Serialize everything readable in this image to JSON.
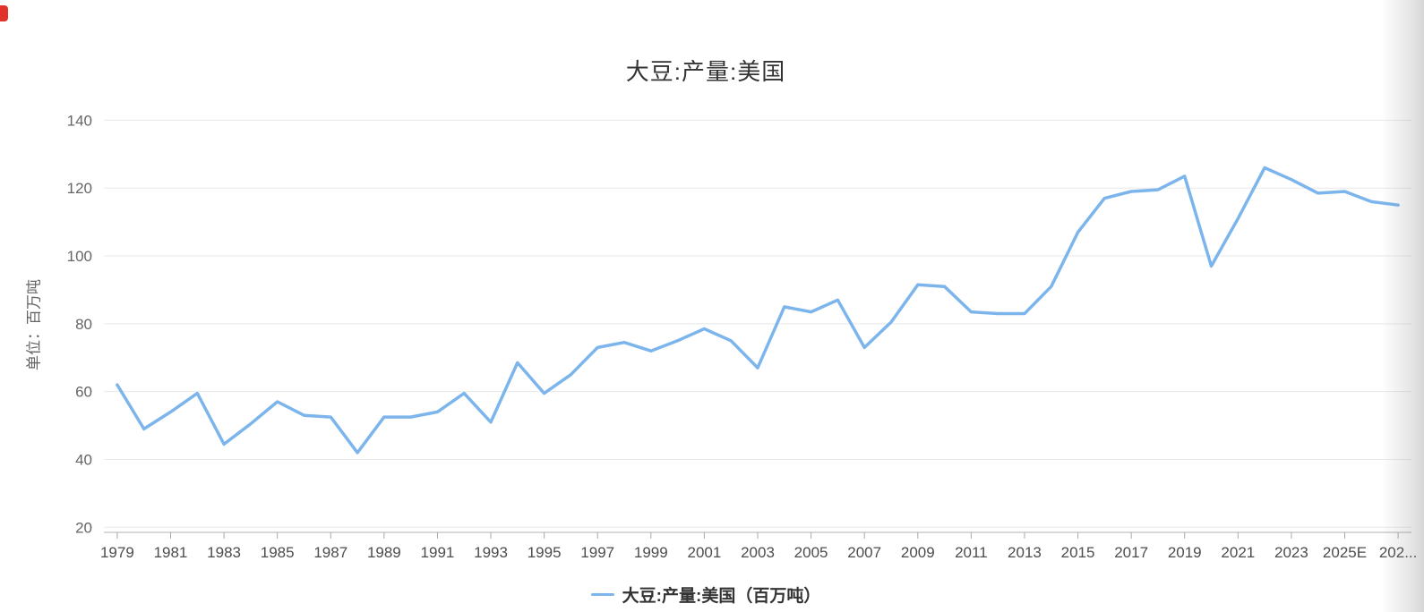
{
  "chart": {
    "line_color": "#7cb5ec",
    "grid_color": "#e8e8e8",
    "axis_line_color": "#b0b0b0",
    "tick_color": "#a8a8a8",
    "y_label_color": "#666666",
    "x_label_color": "#4d4d4d",
    "title_color": "#333333"
  },
  "chart_data": {
    "type": "line",
    "title": "大豆:产量:美国",
    "ylabel": "单位：百万吨",
    "legend_label": "大豆:产量:美国（百万吨）",
    "legend_position": "bottom",
    "grid": "horizontal",
    "ylim": [
      20,
      140
    ],
    "ytick_step": 20,
    "yticks": [
      20,
      40,
      60,
      80,
      100,
      120,
      140
    ],
    "categories": [
      "1979",
      "1980",
      "1981",
      "1982",
      "1983",
      "1984",
      "1985",
      "1986",
      "1987",
      "1988",
      "1989",
      "1990",
      "1991",
      "1992",
      "1993",
      "1994",
      "1995",
      "1996",
      "1997",
      "1998",
      "1999",
      "2000",
      "2001",
      "2002",
      "2003",
      "2004",
      "2005",
      "2006",
      "2007",
      "2008",
      "2009",
      "2010",
      "2011",
      "2012",
      "2013",
      "2014",
      "2015",
      "2016",
      "2017",
      "2018",
      "2019",
      "2020",
      "2021",
      "2022",
      "2023",
      "2024",
      "2025E",
      "2026E",
      "2027E"
    ],
    "values": [
      62,
      49,
      54,
      59.5,
      44.5,
      50.5,
      57,
      53,
      52.5,
      42,
      52.5,
      52.5,
      54,
      59.5,
      51,
      68.5,
      59.5,
      65,
      73,
      74.5,
      72,
      75,
      78.5,
      75,
      67,
      85,
      83.5,
      87,
      73,
      80.5,
      91.5,
      91,
      83.5,
      83,
      83,
      91,
      107,
      117,
      119,
      119.5,
      123.5,
      97,
      111,
      126,
      122.5,
      118.5,
      119,
      116,
      115
    ],
    "xtick_label_step": 2,
    "xtick_labels": [
      "1979",
      "1981",
      "1983",
      "1985",
      "1987",
      "1989",
      "1991",
      "1993",
      "1995",
      "1997",
      "1999",
      "2001",
      "2003",
      "2005",
      "2007",
      "2009",
      "2011",
      "2013",
      "2015",
      "2017",
      "2019",
      "2021",
      "2023",
      "2025E",
      "202..."
    ]
  }
}
